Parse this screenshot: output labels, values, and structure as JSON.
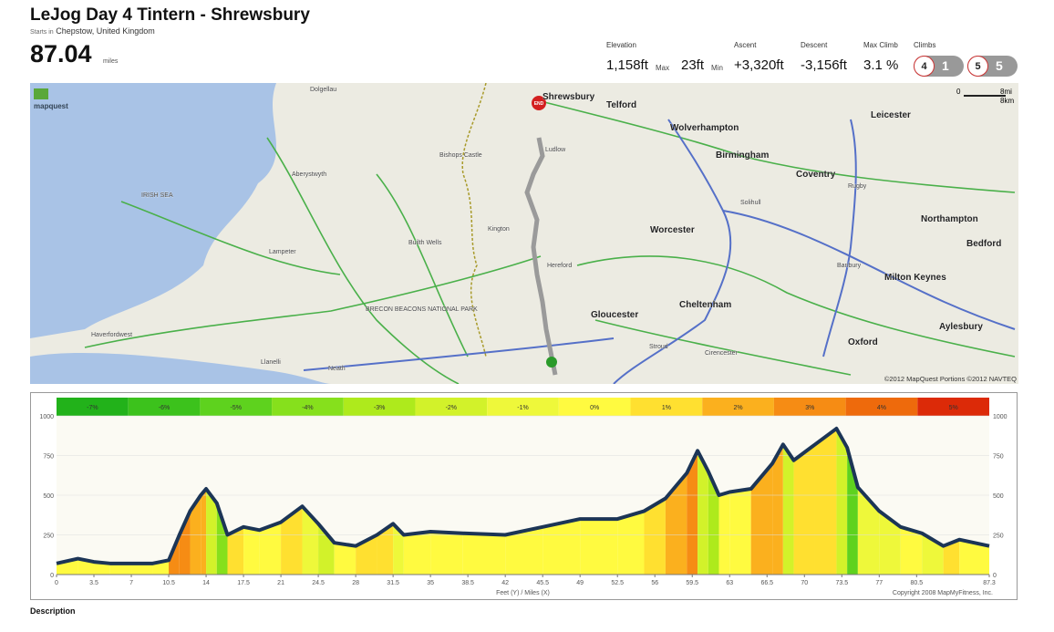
{
  "header": {
    "title": "LeJog Day 4 Tintern - Shrewsbury",
    "starts_label": "Starts in",
    "starts_place": "Chepstow, United Kingdom",
    "distance": "87.04",
    "distance_unit": "miles"
  },
  "stats": {
    "elevation_label": "Elevation",
    "elevation_max": "1,158ft",
    "max_label": "Max",
    "elevation_min": "23ft",
    "min_label": "Min",
    "ascent_label": "Ascent",
    "ascent": "+3,320ft",
    "descent_label": "Descent",
    "descent": "-3,156ft",
    "max_climb_label": "Max Climb",
    "max_climb": "3.1 %",
    "climbs_label": "Climbs",
    "climbs": [
      {
        "category": "4",
        "count": "1"
      },
      {
        "category": "5",
        "count": "5"
      }
    ]
  },
  "map": {
    "logo": "mapquest",
    "scale_zero": "0",
    "scale_mi": "8mi",
    "scale_km": "8km",
    "end_label": "END",
    "copyright": "©2012 MapQuest Portions ©2012 NAVTEQ",
    "places": [
      "Shrewsbury",
      "Telford",
      "Wolverhampton",
      "Birmingham",
      "Leicester",
      "Coventry",
      "Northampton",
      "Worcester",
      "Bedford",
      "Milton Keynes",
      "Cheltenham",
      "Gloucester",
      "Aylesbury",
      "Oxford",
      "IRISH SEA",
      "BRECON BEACONS NATIONAL PARK",
      "Aberystwyth",
      "Hereford",
      "Haverfordwest",
      "Lampeter",
      "Builth Wells",
      "Kington",
      "Stroud",
      "Cirencester",
      "Banbury",
      "Llanelli",
      "Neath",
      "Dolgellau",
      "Bishops Castle",
      "Solihull",
      "Rugby",
      "Ludlow"
    ]
  },
  "elevation_chart": {
    "type": "area",
    "grade_legend": [
      {
        "label": "-7%",
        "color": "#22b21a"
      },
      {
        "label": "-6%",
        "color": "#3cc21c"
      },
      {
        "label": "-5%",
        "color": "#5ed21e"
      },
      {
        "label": "-4%",
        "color": "#86e01c"
      },
      {
        "label": "-3%",
        "color": "#aeea1c"
      },
      {
        "label": "-2%",
        "color": "#d2f22a"
      },
      {
        "label": "-1%",
        "color": "#eef83a"
      },
      {
        "label": "0%",
        "color": "#fffa40"
      },
      {
        "label": "1%",
        "color": "#ffe030"
      },
      {
        "label": "2%",
        "color": "#fbb01e"
      },
      {
        "label": "3%",
        "color": "#f68c14"
      },
      {
        "label": "4%",
        "color": "#ee6a0c"
      },
      {
        "label": "5%",
        "color": "#dc2a08"
      }
    ],
    "x": [
      0,
      2,
      3.5,
      5,
      7,
      9,
      10.5,
      11.5,
      12.5,
      13.5,
      14,
      15,
      16,
      17.5,
      19,
      21,
      23,
      24.5,
      26,
      28,
      30,
      31.5,
      32.5,
      35,
      38,
      42,
      45.5,
      49,
      52.5,
      55,
      57,
      59,
      60,
      61,
      62,
      63,
      65,
      67,
      68,
      69,
      71,
      73,
      74,
      75,
      77,
      79,
      81,
      83,
      84.5,
      87.3
    ],
    "values": [
      70,
      100,
      80,
      70,
      70,
      70,
      90,
      250,
      400,
      500,
      540,
      450,
      250,
      300,
      280,
      330,
      430,
      320,
      200,
      180,
      250,
      320,
      250,
      270,
      260,
      250,
      300,
      350,
      350,
      400,
      480,
      640,
      780,
      650,
      500,
      520,
      540,
      700,
      820,
      720,
      820,
      920,
      800,
      550,
      400,
      300,
      260,
      180,
      220,
      180
    ],
    "xlim": [
      0,
      87.3
    ],
    "ylim": [
      0,
      1000
    ],
    "xticks": [
      0,
      3.5,
      7,
      10.5,
      14,
      17.5,
      21,
      24.5,
      28,
      31.5,
      35,
      38.5,
      42,
      45.5,
      49,
      52.5,
      56,
      59.5,
      63,
      66.5,
      70,
      73.5,
      77,
      80.5,
      87.3
    ],
    "yticks": [
      0,
      250,
      500,
      750,
      1000
    ],
    "axis_label": "Feet (Y) / Miles (X)",
    "copyright": "Copyright 2008 MapMyFitness, Inc."
  },
  "footer": {
    "description": "Description"
  }
}
